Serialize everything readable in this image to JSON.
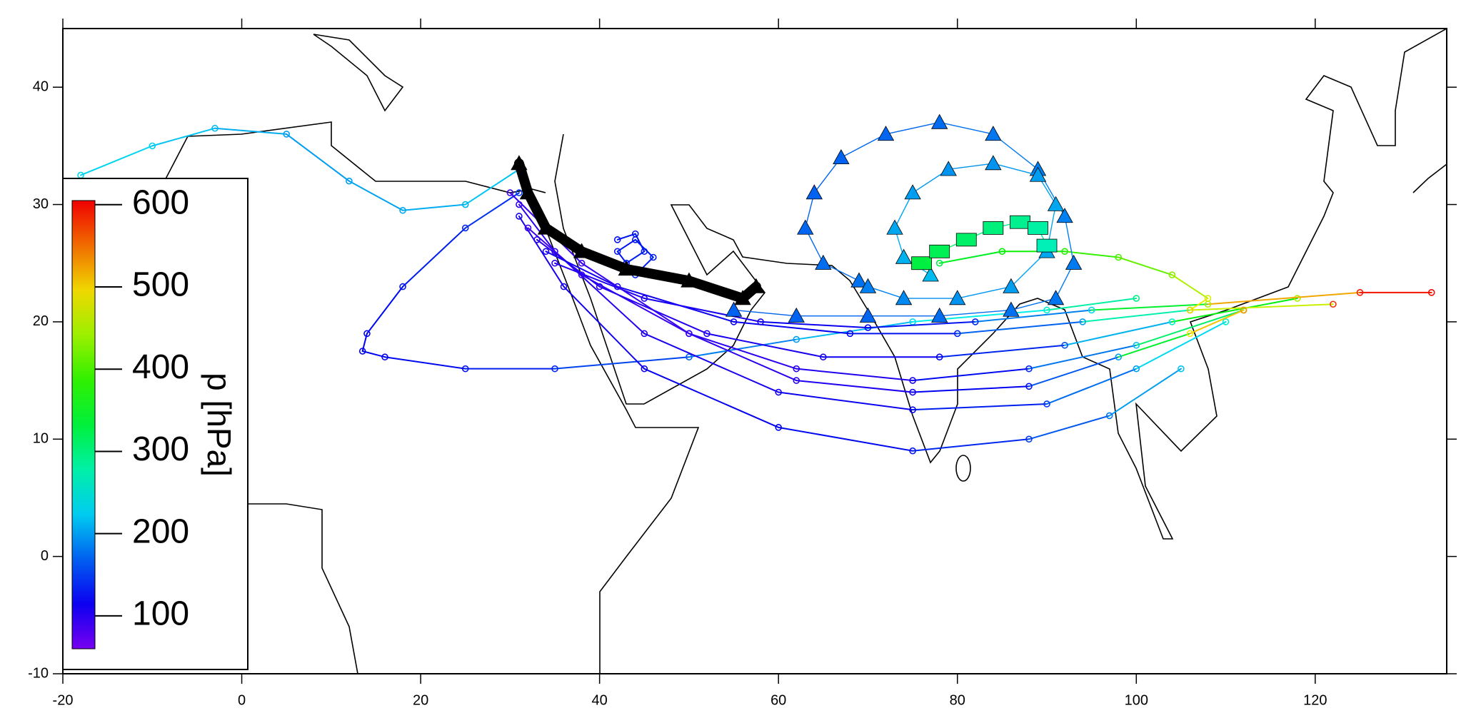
{
  "chart_data": {
    "type": "trajectory_map",
    "xlim": [
      -20,
      134.7
    ],
    "ylim": [
      -10,
      45
    ],
    "xticks": [
      -20,
      0,
      20,
      40,
      60,
      80,
      100,
      120
    ],
    "yticks": [
      -10,
      0,
      10,
      20,
      30,
      40
    ],
    "colorbar": {
      "label": "p [hPa]",
      "lim": [
        60,
        605
      ],
      "ticks": [
        100,
        200,
        300,
        400,
        500,
        600
      ]
    },
    "trajectories": [
      {
        "marker": "circle",
        "lon": [
          -18,
          -10,
          -3,
          5,
          12,
          18,
          25,
          31
        ],
        "lat": [
          32.5,
          35,
          36.5,
          36,
          32,
          29.5,
          30,
          33
        ],
        "p": [
          230,
          225,
          215,
          200,
          200,
          205,
          210,
          230
        ]
      },
      {
        "marker": "circle",
        "lon": [
          31,
          25,
          18,
          14,
          13.5,
          16,
          25,
          35,
          50,
          62,
          75,
          90,
          100
        ],
        "lat": [
          31,
          28,
          23,
          19,
          17.5,
          17,
          16,
          16,
          17,
          18.5,
          20,
          21,
          22
        ],
        "p": [
          150,
          140,
          130,
          120,
          120,
          120,
          130,
          140,
          170,
          200,
          230,
          260,
          300
        ]
      },
      {
        "marker": "circle",
        "lon": [
          31,
          35,
          45,
          60,
          75,
          90,
          100,
          110
        ],
        "lat": [
          30,
          26,
          19,
          14,
          12.5,
          13,
          16,
          20
        ],
        "p": [
          100,
          100,
          105,
          110,
          120,
          150,
          200,
          260
        ]
      },
      {
        "marker": "circle",
        "lon": [
          31,
          36,
          45,
          60,
          75,
          88,
          97,
          105
        ],
        "lat": [
          29,
          23,
          16,
          11,
          9,
          10,
          12,
          16
        ],
        "p": [
          110,
          110,
          115,
          120,
          130,
          150,
          180,
          220
        ]
      },
      {
        "marker": "circle",
        "lon": [
          32,
          38,
          50,
          62,
          75,
          88,
          100,
          112
        ],
        "lat": [
          28,
          24,
          19,
          16,
          15,
          16,
          18,
          21
        ],
        "p": [
          90,
          90,
          95,
          100,
          110,
          140,
          220,
          400
        ]
      },
      {
        "marker": "circle",
        "lon": [
          33,
          40,
          52,
          65,
          78,
          92,
          104,
          118
        ],
        "lat": [
          27,
          23,
          19,
          17,
          17,
          18,
          20,
          22
        ],
        "p": [
          100,
          100,
          105,
          110,
          120,
          160,
          260,
          450
        ]
      },
      {
        "marker": "circle",
        "lon": [
          34,
          42,
          55,
          68,
          80,
          94,
          106,
          122
        ],
        "lat": [
          26,
          23,
          20,
          19,
          19,
          20,
          21,
          21.5
        ],
        "p": [
          110,
          110,
          115,
          120,
          140,
          200,
          350,
          580
        ]
      },
      {
        "marker": "circle",
        "lon": [
          35,
          45,
          58,
          70,
          82,
          95,
          108,
          125,
          133
        ],
        "lat": [
          25,
          22,
          20,
          19.5,
          20,
          21,
          21.5,
          22.5,
          22.5
        ],
        "p": [
          100,
          105,
          110,
          120,
          140,
          230,
          450,
          590,
          600
        ]
      },
      {
        "marker": "circle",
        "lon": [
          30,
          38,
          50,
          62,
          75,
          88,
          98,
          106,
          112
        ],
        "lat": [
          31,
          25,
          19,
          15,
          14,
          14.5,
          17,
          19,
          21
        ],
        "p": [
          90,
          92,
          95,
          100,
          110,
          130,
          200,
          480,
          530
        ]
      },
      {
        "marker": "circle",
        "lon": [
          42,
          44,
          45,
          43,
          42,
          44,
          46,
          44
        ],
        "lat": [
          27,
          27.5,
          26,
          25,
          26,
          27,
          25.5,
          24
        ],
        "p": [
          130,
          130,
          135,
          135,
          130,
          130,
          135,
          140
        ]
      },
      {
        "marker": "circle",
        "lon": [
          78,
          85,
          92,
          98,
          104,
          108,
          106
        ],
        "lat": [
          25,
          26,
          26,
          25.5,
          24,
          22,
          21
        ],
        "p": [
          330,
          360,
          380,
          400,
          430,
          470,
          500
        ]
      },
      {
        "marker": "triangle",
        "lon": [
          55,
          62,
          70,
          78,
          86,
          91,
          93,
          92,
          89,
          84,
          78,
          72,
          67,
          64,
          63,
          65,
          69
        ],
        "lat": [
          21,
          20.5,
          20.5,
          20.5,
          21,
          22,
          25,
          29,
          33,
          36,
          37,
          36,
          34,
          31,
          28,
          25,
          23.5
        ],
        "p": [
          170,
          170,
          172,
          175,
          178,
          180,
          182,
          185,
          185,
          180,
          175,
          172,
          170,
          170,
          172,
          175,
          178
        ]
      },
      {
        "marker": "triangle",
        "lon": [
          70,
          74,
          80,
          86,
          90,
          91,
          89,
          84,
          79,
          75,
          73,
          74,
          77
        ],
        "lat": [
          23,
          22,
          22,
          23,
          26,
          30,
          32.5,
          33.5,
          33,
          31,
          28,
          25.5,
          24
        ],
        "p": [
          185,
          190,
          195,
          200,
          205,
          205,
          200,
          195,
          195,
          200,
          205,
          210,
          215
        ]
      },
      {
        "marker": "square",
        "lon": [
          76,
          78,
          81,
          84,
          87,
          89,
          90
        ],
        "lat": [
          25,
          26,
          27,
          28,
          28.5,
          28,
          26.5
        ],
        "p": [
          330,
          320,
          310,
          300,
          290,
          280,
          270
        ]
      },
      {
        "marker": "triangle",
        "color": "#000000",
        "lon": [
          31,
          32,
          34,
          38,
          43,
          50,
          56,
          57.5
        ],
        "lat": [
          33.5,
          31,
          28,
          26,
          24.5,
          23.5,
          22,
          23
        ]
      }
    ]
  }
}
